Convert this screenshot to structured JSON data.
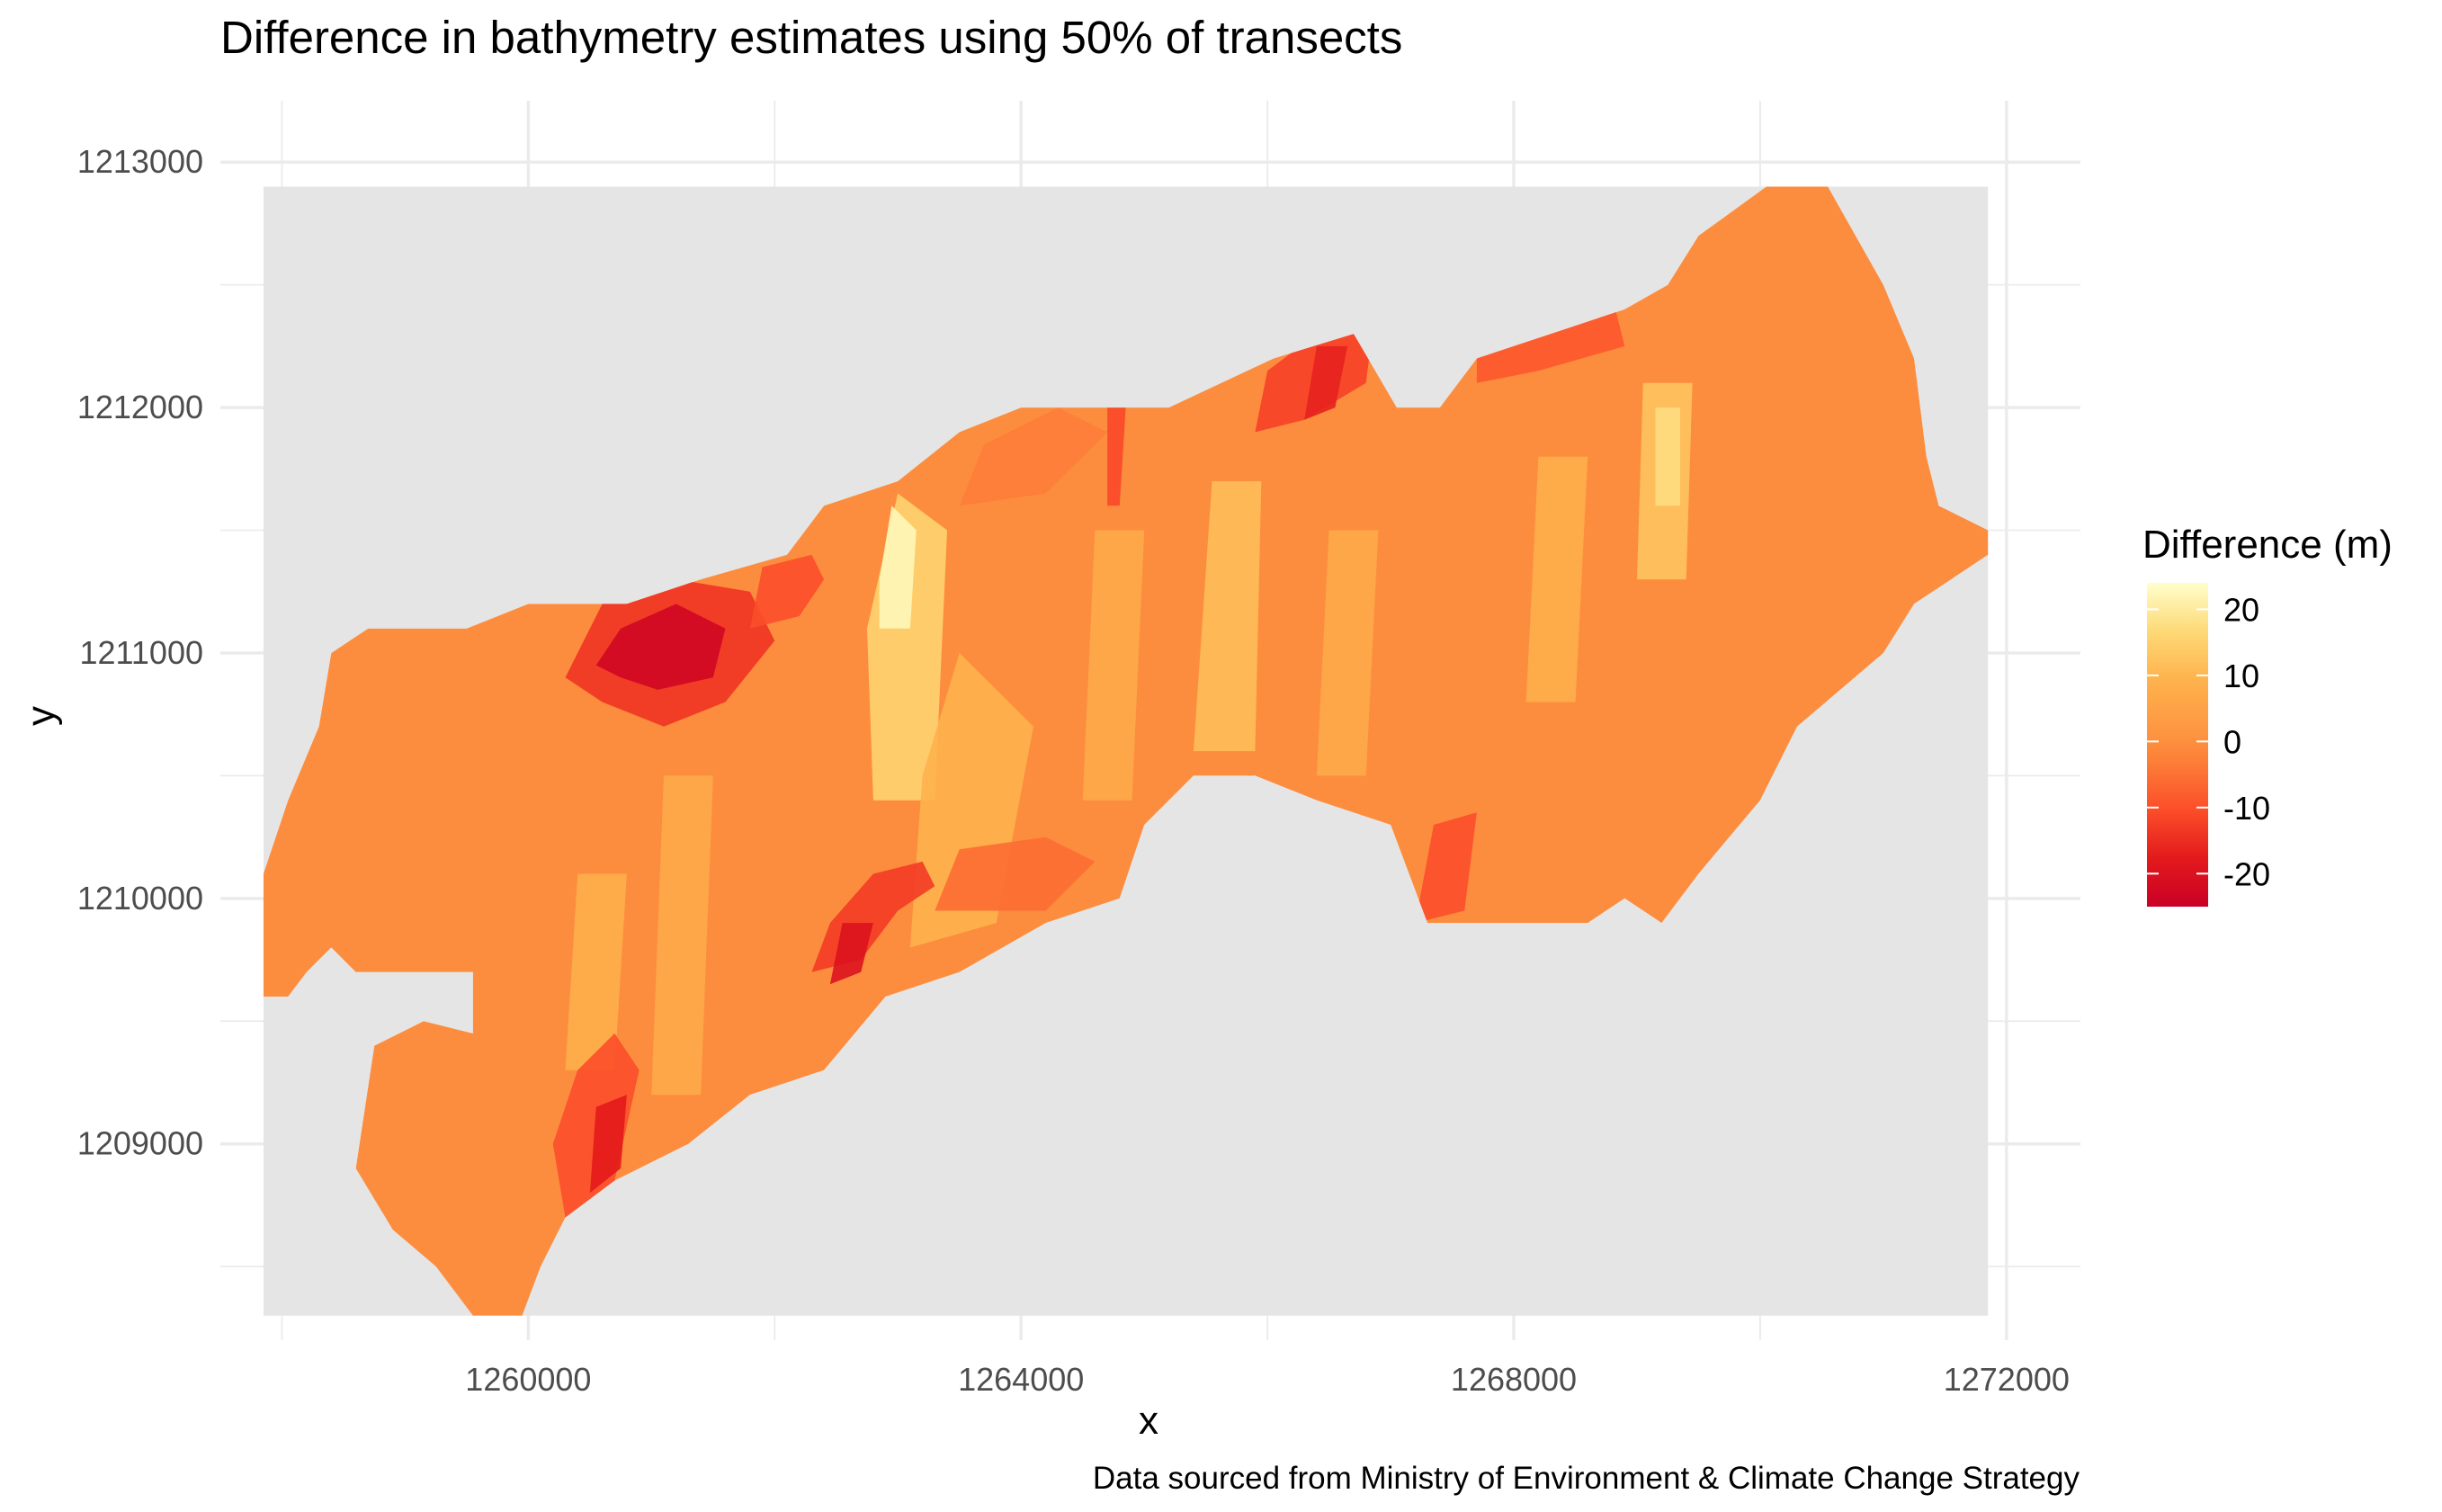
{
  "chart_data": {
    "type": "heatmap",
    "title": "Difference in bathymetry estimates using 50% of transects",
    "xlabel": "x",
    "ylabel": "y",
    "caption": "Data sourced from Ministry of Environment & Climate Change Strategy",
    "xlim": [
      1257500,
      1272600
    ],
    "ylim": [
      1208200,
      1213250
    ],
    "x_ticks": [
      1260000,
      1264000,
      1268000,
      1272000
    ],
    "x_tick_labels": [
      "1260000",
      "1264000",
      "1268000",
      "1272000"
    ],
    "y_ticks": [
      1209000,
      1210000,
      1211000,
      1212000,
      1213000
    ],
    "y_tick_labels": [
      "1209000",
      "1210000",
      "1211000",
      "1212000",
      "1213000"
    ],
    "panel_extent": {
      "x": [
        1257850,
        1271850
      ],
      "y": [
        1208300,
        1212900
      ]
    },
    "grid": true,
    "legend": {
      "title": "Difference (m)",
      "position": "right",
      "ticks": [
        20,
        10,
        0,
        -10,
        -20
      ],
      "tick_labels": [
        "20",
        "10",
        "0",
        "-10",
        "-20"
      ],
      "range": [
        -25,
        24
      ],
      "colors": [
        "#800026",
        "#BD0026",
        "#E31A1C",
        "#FC4E2A",
        "#FD8D3C",
        "#FEB24C",
        "#FED976",
        "#FFFFCC"
      ]
    },
    "colors": {
      "panel_background": "#e5e5e5",
      "gridline": "#ebebeb",
      "baseline_fill": "#fd9240"
    },
    "regions": [
      {
        "name": "main-channel",
        "value": -1,
        "polygon": [
          [
            1257850,
            1209600
          ],
          [
            1257850,
            1210100
          ],
          [
            1258050,
            1210400
          ],
          [
            1258300,
            1210700
          ],
          [
            1258400,
            1211000
          ],
          [
            1258700,
            1211100
          ],
          [
            1259500,
            1211100
          ],
          [
            1260000,
            1211200
          ],
          [
            1260800,
            1211200
          ],
          [
            1261400,
            1211300
          ],
          [
            1262100,
            1211400
          ],
          [
            1262400,
            1211600
          ],
          [
            1263000,
            1211700
          ],
          [
            1263500,
            1211900
          ],
          [
            1264000,
            1212000
          ],
          [
            1264500,
            1212000
          ],
          [
            1265200,
            1212000
          ],
          [
            1266050,
            1212200
          ],
          [
            1266700,
            1212300
          ],
          [
            1267050,
            1212000
          ],
          [
            1267400,
            1212000
          ],
          [
            1267700,
            1212200
          ],
          [
            1268300,
            1212300
          ],
          [
            1268900,
            1212400
          ],
          [
            1269250,
            1212500
          ],
          [
            1269500,
            1212700
          ],
          [
            1270050,
            1212900
          ],
          [
            1270550,
            1212900
          ],
          [
            1271000,
            1212500
          ],
          [
            1271250,
            1212200
          ],
          [
            1271350,
            1211800
          ],
          [
            1271450,
            1211600
          ],
          [
            1271850,
            1211500
          ],
          [
            1271850,
            1211400
          ],
          [
            1271250,
            1211200
          ],
          [
            1271000,
            1211000
          ],
          [
            1270300,
            1210700
          ],
          [
            1270000,
            1210400
          ],
          [
            1269500,
            1210100
          ],
          [
            1269200,
            1209900
          ],
          [
            1268900,
            1210000
          ],
          [
            1268600,
            1209900
          ],
          [
            1268300,
            1209900
          ],
          [
            1267800,
            1209900
          ],
          [
            1267300,
            1209900
          ],
          [
            1267000,
            1210300
          ],
          [
            1266400,
            1210400
          ],
          [
            1265900,
            1210500
          ],
          [
            1265400,
            1210500
          ],
          [
            1265000,
            1210300
          ],
          [
            1264800,
            1210000
          ],
          [
            1264200,
            1209900
          ],
          [
            1263500,
            1209700
          ],
          [
            1262900,
            1209600
          ],
          [
            1262400,
            1209300
          ],
          [
            1261800,
            1209200
          ],
          [
            1261300,
            1209000
          ],
          [
            1260700,
            1208850
          ],
          [
            1260300,
            1208700
          ],
          [
            1260100,
            1208500
          ],
          [
            1259950,
            1208300
          ],
          [
            1259550,
            1208300
          ],
          [
            1259250,
            1208500
          ],
          [
            1258900,
            1208650
          ],
          [
            1258600,
            1208900
          ],
          [
            1258750,
            1209400
          ],
          [
            1259150,
            1209500
          ],
          [
            1259550,
            1209450
          ],
          [
            1259550,
            1209700
          ],
          [
            1259200,
            1209700
          ],
          [
            1258600,
            1209700
          ],
          [
            1258400,
            1209800
          ],
          [
            1258200,
            1209700
          ],
          [
            1258050,
            1209600
          ]
        ]
      },
      {
        "name": "band-x1263000",
        "value": 14,
        "polygon": [
          [
            1262800,
            1210400
          ],
          [
            1263300,
            1210400
          ],
          [
            1263400,
            1211500
          ],
          [
            1263000,
            1211650
          ],
          [
            1262750,
            1211100
          ]
        ]
      },
      {
        "name": "peak-x1263000",
        "value": 22,
        "polygon": [
          [
            1262850,
            1211100
          ],
          [
            1263100,
            1211100
          ],
          [
            1263150,
            1211500
          ],
          [
            1262950,
            1211600
          ],
          [
            1262850,
            1211300
          ]
        ]
      },
      {
        "name": "band-x1265600",
        "value": 10,
        "polygon": [
          [
            1265400,
            1210600
          ],
          [
            1265900,
            1210600
          ],
          [
            1265950,
            1211700
          ],
          [
            1265550,
            1211700
          ]
        ]
      },
      {
        "name": "band-x1269200",
        "value": 11,
        "polygon": [
          [
            1269000,
            1211300
          ],
          [
            1269400,
            1211300
          ],
          [
            1269450,
            1212100
          ],
          [
            1269050,
            1212100
          ]
        ]
      },
      {
        "name": "peak-x1269200",
        "value": 16,
        "polygon": [
          [
            1269150,
            1211600
          ],
          [
            1269350,
            1211600
          ],
          [
            1269350,
            1212000
          ],
          [
            1269150,
            1212000
          ]
        ]
      },
      {
        "name": "band-x1263300",
        "value": 8,
        "polygon": [
          [
            1263100,
            1209800
          ],
          [
            1263800,
            1209900
          ],
          [
            1264100,
            1210700
          ],
          [
            1263500,
            1211000
          ],
          [
            1263200,
            1210500
          ]
        ]
      },
      {
        "name": "band-x1261200",
        "value": 6,
        "polygon": [
          [
            1261000,
            1209200
          ],
          [
            1261400,
            1209200
          ],
          [
            1261500,
            1210500
          ],
          [
            1261100,
            1210500
          ]
        ]
      },
      {
        "name": "band-x1260500",
        "value": 7,
        "polygon": [
          [
            1260300,
            1209300
          ],
          [
            1260700,
            1209300
          ],
          [
            1260800,
            1210100
          ],
          [
            1260400,
            1210100
          ]
        ]
      },
      {
        "name": "band-x1266600",
        "value": 6,
        "polygon": [
          [
            1266400,
            1210500
          ],
          [
            1266800,
            1210500
          ],
          [
            1266900,
            1211500
          ],
          [
            1266500,
            1211500
          ]
        ]
      },
      {
        "name": "band-x1268300",
        "value": 7,
        "polygon": [
          [
            1268100,
            1210800
          ],
          [
            1268500,
            1210800
          ],
          [
            1268600,
            1211800
          ],
          [
            1268200,
            1211800
          ]
        ]
      },
      {
        "name": "band-x1264700",
        "value": 6,
        "polygon": [
          [
            1264500,
            1210400
          ],
          [
            1264900,
            1210400
          ],
          [
            1265000,
            1211500
          ],
          [
            1264600,
            1211500
          ]
        ]
      },
      {
        "name": "patch-x1261100-high",
        "value": -14,
        "polygon": [
          [
            1260300,
            1210900
          ],
          [
            1260600,
            1210800
          ],
          [
            1261100,
            1210700
          ],
          [
            1261600,
            1210800
          ],
          [
            1262000,
            1211050
          ],
          [
            1261800,
            1211250
          ],
          [
            1261200,
            1211300
          ],
          [
            1260600,
            1211200
          ]
        ]
      },
      {
        "name": "patch-x1261100-low",
        "value": -23,
        "polygon": [
          [
            1260550,
            1210950
          ],
          [
            1260750,
            1210900
          ],
          [
            1261050,
            1210850
          ],
          [
            1261500,
            1210900
          ],
          [
            1261600,
            1211100
          ],
          [
            1261200,
            1211200
          ],
          [
            1260750,
            1211100
          ]
        ]
      },
      {
        "name": "patch-x1262000",
        "value": -10,
        "polygon": [
          [
            1261800,
            1211100
          ],
          [
            1262200,
            1211150
          ],
          [
            1262400,
            1211300
          ],
          [
            1262300,
            1211400
          ],
          [
            1261900,
            1211350
          ]
        ]
      },
      {
        "name": "patch-x1262800-low",
        "value": -13,
        "polygon": [
          [
            1262300,
            1209700
          ],
          [
            1262700,
            1209750
          ],
          [
            1263000,
            1209950
          ],
          [
            1263300,
            1210050
          ],
          [
            1263200,
            1210150
          ],
          [
            1262800,
            1210100
          ],
          [
            1262450,
            1209900
          ]
        ]
      },
      {
        "name": "patch-x1262800-core",
        "value": -20,
        "polygon": [
          [
            1262450,
            1209650
          ],
          [
            1262700,
            1209700
          ],
          [
            1262800,
            1209900
          ],
          [
            1262550,
            1209900
          ]
        ]
      },
      {
        "name": "patch-x1263500",
        "value": -6,
        "polygon": [
          [
            1263300,
            1209950
          ],
          [
            1264200,
            1209950
          ],
          [
            1264600,
            1210150
          ],
          [
            1264200,
            1210250
          ],
          [
            1263500,
            1210200
          ]
        ]
      },
      {
        "name": "patch-x1260700-low",
        "value": -10,
        "polygon": [
          [
            1260300,
            1208700
          ],
          [
            1260700,
            1208850
          ],
          [
            1260900,
            1209300
          ],
          [
            1260700,
            1209450
          ],
          [
            1260400,
            1209300
          ],
          [
            1260200,
            1209000
          ]
        ]
      },
      {
        "name": "patch-x1260700-core",
        "value": -18,
        "polygon": [
          [
            1260500,
            1208800
          ],
          [
            1260750,
            1208900
          ],
          [
            1260800,
            1209200
          ],
          [
            1260550,
            1209150
          ]
        ]
      },
      {
        "name": "patch-x1266200-low",
        "value": -12,
        "polygon": [
          [
            1265900,
            1211900
          ],
          [
            1266300,
            1211950
          ],
          [
            1266800,
            1212100
          ],
          [
            1266850,
            1212300
          ],
          [
            1266400,
            1212300
          ],
          [
            1266000,
            1212150
          ]
        ]
      },
      {
        "name": "patch-x1266200-core",
        "value": -17,
        "polygon": [
          [
            1266300,
            1211950
          ],
          [
            1266550,
            1212000
          ],
          [
            1266650,
            1212250
          ],
          [
            1266400,
            1212250
          ]
        ]
      },
      {
        "name": "patch-x1268400",
        "value": -9,
        "polygon": [
          [
            1267700,
            1212100
          ],
          [
            1268200,
            1212150
          ],
          [
            1268900,
            1212250
          ],
          [
            1268800,
            1212450
          ],
          [
            1268200,
            1212350
          ],
          [
            1267700,
            1212250
          ]
        ]
      },
      {
        "name": "patch-x1264800",
        "value": -11,
        "polygon": [
          [
            1264700,
            1211600
          ],
          [
            1264800,
            1211600
          ],
          [
            1264850,
            1212000
          ],
          [
            1264700,
            1212000
          ]
        ]
      },
      {
        "name": "patch-x1267400",
        "value": -10,
        "polygon": [
          [
            1267200,
            1209900
          ],
          [
            1267600,
            1209950
          ],
          [
            1267700,
            1210350
          ],
          [
            1267350,
            1210300
          ]
        ]
      },
      {
        "name": "patch-x1263800",
        "value": -4,
        "polygon": [
          [
            1263500,
            1211600
          ],
          [
            1264200,
            1211650
          ],
          [
            1264700,
            1211900
          ],
          [
            1264300,
            1212000
          ],
          [
            1263700,
            1211850
          ]
        ]
      }
    ]
  }
}
